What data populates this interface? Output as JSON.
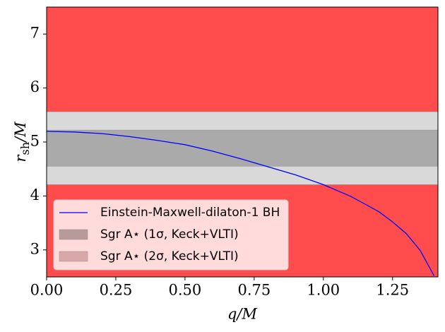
{
  "chart_data": {
    "type": "line",
    "xlabel": "q/M",
    "ylabel": {
      "main": "r",
      "sub": "sh",
      "rest": "/M"
    },
    "xlim": [
      0,
      1.414
    ],
    "ylim": [
      2.5,
      7.5
    ],
    "xticks": [
      {
        "value": 0,
        "label": "0.00"
      },
      {
        "value": 0.25,
        "label": "0.25"
      },
      {
        "value": 0.5,
        "label": "0.50"
      },
      {
        "value": 0.75,
        "label": "0.75"
      },
      {
        "value": 1,
        "label": "1.00"
      },
      {
        "value": 1.25,
        "label": "1.25"
      }
    ],
    "yticks": [
      3,
      4,
      5,
      6,
      7
    ],
    "excluded_color": "#ff4c4c",
    "bands": [
      {
        "name": "Sgr A⋆ (2σ, Keck+VLTI)",
        "range": [
          4.21,
          5.56
        ],
        "color": "#d9d9d9",
        "legend_color": "#d8a8a8"
      },
      {
        "name": "Sgr A⋆ (1σ, Keck+VLTI)",
        "range": [
          4.55,
          5.22
        ],
        "color": "#aaaaaa",
        "legend_color": "#b89a9a"
      }
    ],
    "series": [
      {
        "name": "Einstein-Maxwell-dilaton-1 BH",
        "color": "#0000ff",
        "x": [
          0,
          0.1,
          0.2,
          0.3,
          0.4,
          0.5,
          0.6,
          0.7,
          0.8,
          0.9,
          1.0,
          1.1,
          1.2,
          1.25,
          1.3,
          1.35,
          1.4
        ],
        "values": [
          5.196,
          5.186,
          5.155,
          5.1,
          5.03,
          4.95,
          4.83,
          4.69,
          4.54,
          4.39,
          4.21,
          3.99,
          3.71,
          3.52,
          3.3,
          2.99,
          2.52
        ]
      }
    ],
    "legend": "lower left"
  }
}
